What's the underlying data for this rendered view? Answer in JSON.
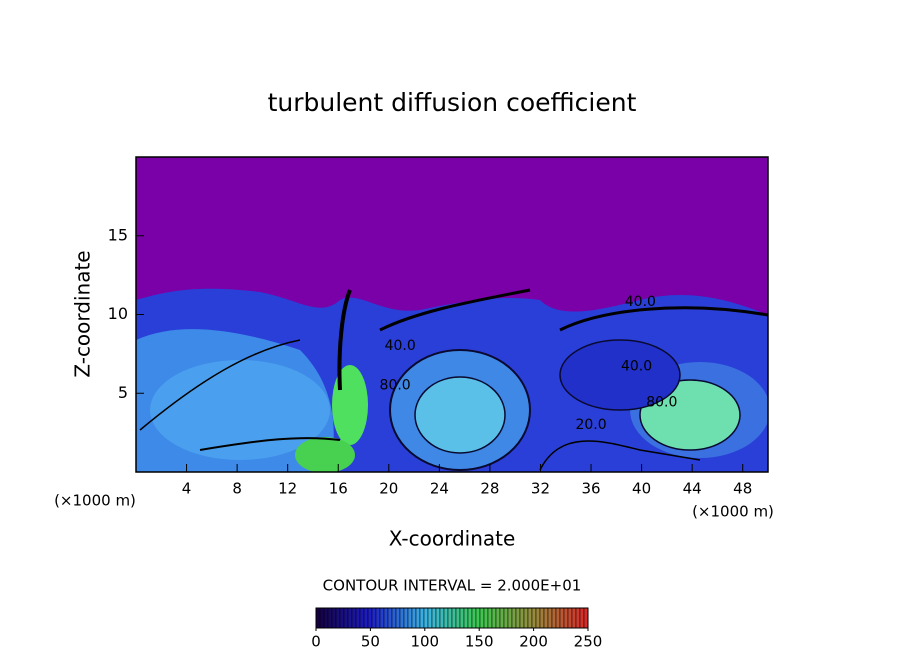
{
  "chart_data": {
    "type": "contour",
    "title": "turbulent diffusion coefficient",
    "xlabel": "X-coordinate",
    "ylabel": "Z-coordinate",
    "unit": "(×1000 m)",
    "xlim": [
      0,
      50
    ],
    "xticks": [
      4,
      8,
      12,
      16,
      20,
      24,
      28,
      32,
      36,
      40,
      44,
      48
    ],
    "ylim": [
      0,
      20
    ],
    "yticks": [
      5,
      10,
      15
    ],
    "contour_labels": [
      {
        "label": "40.0",
        "x": 20.9,
        "y": 8.0
      },
      {
        "label": "80.0",
        "x": 20.5,
        "y": 5.5
      },
      {
        "label": "40.0",
        "x": 39.6,
        "y": 6.7
      },
      {
        "label": "80.0",
        "x": 41.6,
        "y": 4.4
      },
      {
        "label": "40.0",
        "x": 39.9,
        "y": 10.8
      },
      {
        "label": "20.0",
        "x": 36.0,
        "y": 3.0
      }
    ],
    "colorbar": {
      "title": "CONTOUR INTERVAL = 2.000E+01",
      "lim": [
        0,
        250
      ],
      "ticks": [
        0,
        50,
        100,
        150,
        200,
        250
      ]
    }
  }
}
